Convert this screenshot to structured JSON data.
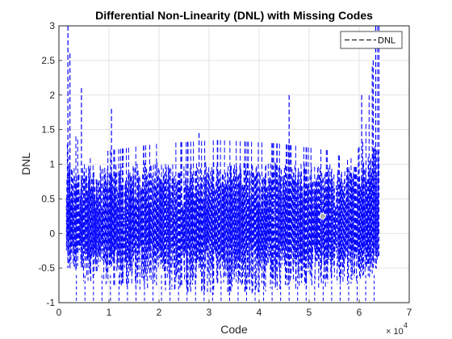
{
  "chart_data": {
    "type": "line",
    "title": "Differential Non-Linearity (DNL) with Missing Codes",
    "xlabel": "Code",
    "ylabel": "DNL",
    "xlim": [
      0,
      70000
    ],
    "ylim": [
      -1,
      3
    ],
    "x_ticks": [
      0,
      10000,
      20000,
      30000,
      40000,
      50000,
      60000,
      70000
    ],
    "x_tick_labels": [
      "0",
      "1",
      "2",
      "3",
      "4",
      "5",
      "6",
      "7"
    ],
    "x_exponent_base": "× 10",
    "x_exponent_power": "4",
    "y_ticks": [
      -1,
      -0.5,
      0,
      0.5,
      1,
      1.5,
      2,
      2.5,
      3
    ],
    "y_tick_labels": [
      "-1",
      "-0.5",
      "0",
      "0.5",
      "1",
      "1.5",
      "2",
      "2.5",
      "3"
    ],
    "grid": true,
    "legend": {
      "placement": "top-right",
      "entries": [
        "DNL"
      ]
    },
    "series": [
      {
        "name": "DNL",
        "color": "#0000ff",
        "style": "dashed",
        "code_range": [
          1500,
          64000
        ],
        "envelope_upper_at": [
          [
            1500,
            3.0
          ],
          [
            3000,
            1.45
          ],
          [
            6000,
            1.08
          ],
          [
            10000,
            1.2
          ],
          [
            20000,
            1.3
          ],
          [
            32000,
            1.35
          ],
          [
            44000,
            1.3
          ],
          [
            54000,
            1.2
          ],
          [
            58000,
            1.05
          ],
          [
            61000,
            1.35
          ],
          [
            63500,
            3.0
          ]
        ],
        "envelope_lower_at": [
          [
            1500,
            -0.4
          ],
          [
            3000,
            -0.6
          ],
          [
            6000,
            -0.75
          ],
          [
            15000,
            -0.82
          ],
          [
            32000,
            -0.9
          ],
          [
            50000,
            -0.82
          ],
          [
            60000,
            -0.75
          ],
          [
            63000,
            -0.6
          ],
          [
            64000,
            -0.4
          ]
        ],
        "dense_band": [
          0,
          0.97
        ],
        "missing_codes_value": -1
      }
    ],
    "highlight_point": {
      "x": 52700,
      "y": 0.25,
      "color": "#aaaaaa"
    }
  }
}
